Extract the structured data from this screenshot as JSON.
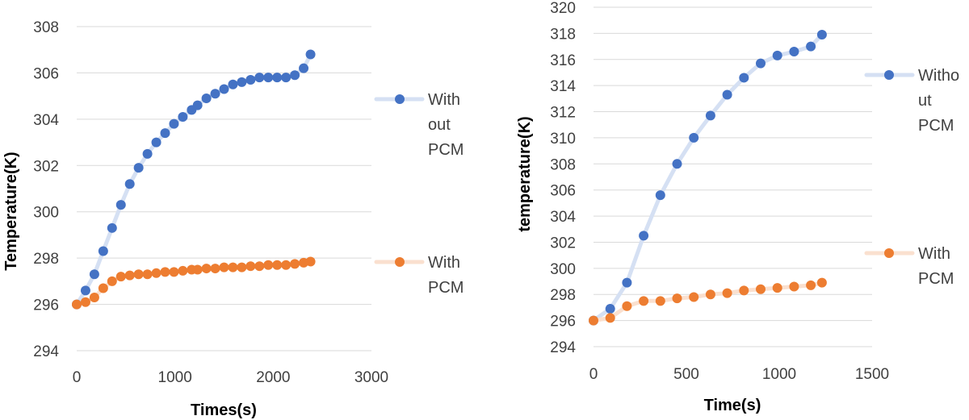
{
  "chart_data": [
    {
      "type": "scatter",
      "xlabel": "Times(s)",
      "ylabel": "Temperature(K)",
      "xlim": [
        0,
        3000
      ],
      "ylim": [
        294,
        308
      ],
      "xticks": [
        "0",
        "1000",
        "2000",
        "3000"
      ],
      "yticks": [
        "294",
        "296",
        "298",
        "300",
        "302",
        "304",
        "306",
        "308"
      ],
      "grid": "horizontal",
      "legend_position": "right",
      "series": [
        {
          "legend_lines": [
            "With",
            "out",
            "PCM"
          ],
          "color": "#4472C4",
          "line_color": "#D5E0F3",
          "x": [
            0,
            90,
            180,
            270,
            360,
            450,
            540,
            630,
            720,
            810,
            900,
            990,
            1080,
            1170,
            1230,
            1320,
            1410,
            1500,
            1590,
            1680,
            1770,
            1860,
            1950,
            2040,
            2130,
            2220,
            2310,
            2380
          ],
          "y": [
            296.0,
            296.6,
            297.3,
            298.3,
            299.3,
            300.3,
            301.2,
            301.9,
            302.5,
            303.0,
            303.4,
            303.8,
            304.1,
            304.4,
            304.6,
            304.9,
            305.1,
            305.3,
            305.5,
            305.6,
            305.7,
            305.8,
            305.8,
            305.8,
            305.8,
            305.9,
            306.2,
            306.8
          ]
        },
        {
          "legend_lines": [
            "With",
            "PCM"
          ],
          "color": "#ED7D31",
          "line_color": "#FAE0CF",
          "x": [
            0,
            90,
            180,
            270,
            360,
            450,
            540,
            630,
            720,
            810,
            900,
            990,
            1080,
            1170,
            1230,
            1320,
            1410,
            1500,
            1590,
            1680,
            1770,
            1860,
            1950,
            2040,
            2130,
            2220,
            2310,
            2380
          ],
          "y": [
            296.0,
            296.1,
            296.3,
            296.7,
            297.0,
            297.2,
            297.25,
            297.3,
            297.3,
            297.35,
            297.4,
            297.4,
            297.45,
            297.5,
            297.5,
            297.55,
            297.55,
            297.6,
            297.6,
            297.6,
            297.65,
            297.65,
            297.7,
            297.7,
            297.7,
            297.75,
            297.8,
            297.85
          ]
        }
      ]
    },
    {
      "type": "scatter",
      "xlabel": "Time(s)",
      "ylabel": "temperature(K)",
      "xlim": [
        0,
        1500
      ],
      "ylim": [
        294,
        320
      ],
      "xticks": [
        "0",
        "500",
        "1000",
        "1500"
      ],
      "yticks": [
        "294",
        "296",
        "298",
        "300",
        "302",
        "304",
        "306",
        "308",
        "310",
        "312",
        "314",
        "316",
        "318",
        "320"
      ],
      "grid": "horizontal",
      "legend_position": "right",
      "series": [
        {
          "legend_lines": [
            "Witho",
            "ut",
            "PCM"
          ],
          "color": "#4472C4",
          "line_color": "#D5E0F3",
          "x": [
            0,
            90,
            180,
            270,
            360,
            450,
            540,
            630,
            720,
            810,
            900,
            990,
            1080,
            1170,
            1230
          ],
          "y": [
            296.0,
            296.9,
            298.9,
            302.5,
            305.6,
            308.0,
            310.0,
            311.7,
            313.3,
            314.6,
            315.7,
            316.3,
            316.6,
            317.0,
            317.9
          ]
        },
        {
          "legend_lines": [
            "With",
            "PCM"
          ],
          "color": "#ED7D31",
          "line_color": "#FAE0CF",
          "x": [
            0,
            90,
            180,
            270,
            360,
            450,
            540,
            630,
            720,
            810,
            900,
            990,
            1080,
            1170,
            1230
          ],
          "y": [
            296.0,
            296.2,
            297.1,
            297.5,
            297.5,
            297.7,
            297.8,
            298.0,
            298.1,
            298.3,
            298.4,
            298.5,
            298.6,
            298.7,
            298.9
          ]
        }
      ]
    }
  ]
}
